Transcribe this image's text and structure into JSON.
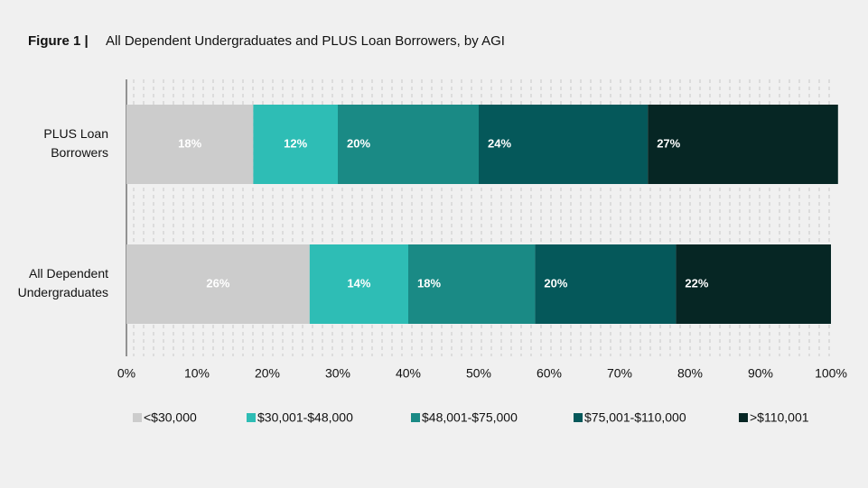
{
  "chart_data": {
    "type": "stacked-barh",
    "title_label": "Figure 1 |",
    "title": "All Dependent Undergraduates and PLUS Loan Borrowers, by AGI",
    "categories": [
      [
        "PLUS Loan",
        "Borrowers"
      ],
      [
        "All Dependent",
        "Undergraduates"
      ]
    ],
    "series": [
      {
        "name": "<$30,000",
        "color": "#cccccc",
        "values": [
          18,
          26
        ],
        "value_labels": [
          "18%",
          "26%"
        ]
      },
      {
        "name": "$30,001-$48,000",
        "color": "#2ebdb5",
        "values": [
          12,
          14
        ],
        "value_labels": [
          "12%",
          "14%"
        ]
      },
      {
        "name": "$48,001-$75,000",
        "color": "#1a8a85",
        "values": [
          20,
          18
        ],
        "value_labels": [
          "20%",
          "18%"
        ]
      },
      {
        "name": "$75,001-$110,000",
        "color": "#05585a",
        "values": [
          24,
          20
        ],
        "value_labels": [
          "24%",
          "20%"
        ]
      },
      {
        "name": ">$110,001",
        "color": "#062624",
        "values": [
          27,
          22
        ],
        "value_labels": [
          "27%",
          "22%"
        ]
      }
    ],
    "xlim": [
      0,
      100
    ],
    "xticks": [
      {
        "value": 0,
        "label": "0%"
      },
      {
        "value": 10,
        "label": "10%"
      },
      {
        "value": 20,
        "label": "20%"
      },
      {
        "value": 30,
        "label": "30%"
      },
      {
        "value": 40,
        "label": "40%"
      },
      {
        "value": 50,
        "label": "50%"
      },
      {
        "value": 60,
        "label": "60%"
      },
      {
        "value": 70,
        "label": "70%"
      },
      {
        "value": 80,
        "label": "80%"
      },
      {
        "value": 90,
        "label": "90%"
      },
      {
        "value": 100,
        "label": "100%"
      }
    ],
    "legend": "bottom"
  }
}
